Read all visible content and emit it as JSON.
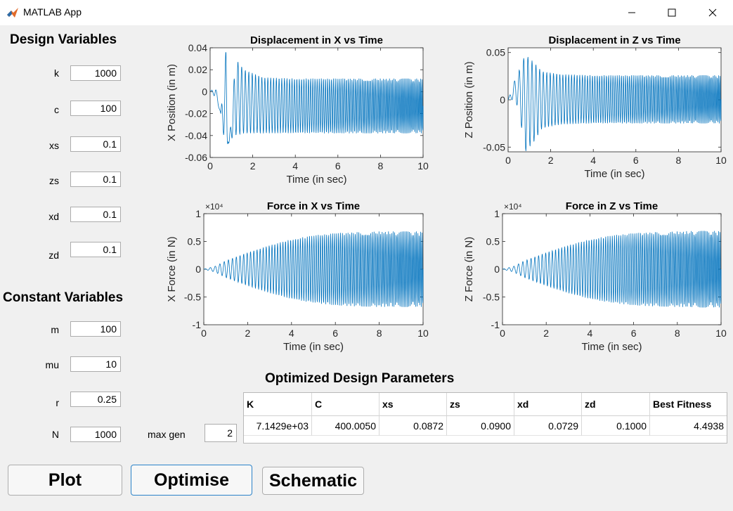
{
  "window": {
    "title": "MATLAB App"
  },
  "design": {
    "title": "Design Variables",
    "fields": [
      {
        "label": "k",
        "value": "1000"
      },
      {
        "label": "c",
        "value": "100"
      },
      {
        "label": "xs",
        "value": "0.1"
      },
      {
        "label": "zs",
        "value": "0.1"
      },
      {
        "label": "xd",
        "value": "0.1"
      },
      {
        "label": "zd",
        "value": "0.1"
      }
    ]
  },
  "constant": {
    "title": "Constant Variables",
    "fields": [
      {
        "label": "m",
        "value": "100"
      },
      {
        "label": "mu",
        "value": "10"
      },
      {
        "label": "r",
        "value": "0.25"
      },
      {
        "label": "N",
        "value": "1000"
      }
    ]
  },
  "maxgen": {
    "label": "max gen",
    "value": "2"
  },
  "table": {
    "title": "Optimized Design Parameters",
    "columns": [
      "K",
      "C",
      "xs",
      "zs",
      "xd",
      "zd",
      "Best Fitness"
    ],
    "rows": [
      [
        "7.1429e+03",
        "400.0050",
        "0.0872",
        "0.0900",
        "0.0729",
        "0.1000",
        "4.4938"
      ]
    ]
  },
  "buttons": {
    "plot": "Plot",
    "optimise": "Optimise",
    "schematic": "Schematic"
  },
  "colors": {
    "line": "#0072bd",
    "focus": "#2b83c9"
  },
  "chart_data": [
    {
      "type": "line",
      "title": "Displacement in X vs Time",
      "xlabel": "Time (in sec)",
      "ylabel": "X Position (in m)",
      "xlim": [
        0,
        10
      ],
      "ylim": [
        -0.06,
        0.04
      ],
      "xticks": [
        "0",
        "2",
        "4",
        "6",
        "8",
        "10"
      ],
      "yticks": [
        "-0.06",
        "-0.04",
        "-0.02",
        "0",
        "0.02",
        "0.04"
      ],
      "exponent": "",
      "series": [
        {
          "x": [
            0,
            0.25,
            0.5,
            0.75,
            0.85,
            1.2,
            1.6,
            2.5,
            4,
            10
          ],
          "y": [
            0,
            0.005,
            -0.02,
            0.04,
            -0.057,
            0.03,
            0.02,
            0.013,
            0.012,
            0.012
          ],
          "y_lower": [
            0,
            -0.005,
            -0.02,
            -0.057,
            -0.045,
            -0.04,
            -0.038,
            -0.038,
            -0.038,
            -0.038
          ]
        }
      ]
    },
    {
      "type": "line",
      "title": "Displacement in Z vs Time",
      "xlabel": "Time (in sec)",
      "ylabel": "Z Position (in m)",
      "xlim": [
        0,
        10
      ],
      "ylim": [
        -0.055,
        0.055
      ],
      "xticks": [
        "0",
        "2",
        "4",
        "6",
        "8",
        "10"
      ],
      "yticks": [
        "-0.05",
        "0",
        "0.05"
      ],
      "exponent": "",
      "series": [
        {
          "x": [
            0,
            0.3,
            0.5,
            0.8,
            1.2,
            1.6,
            2.5,
            4,
            10
          ],
          "y": [
            0,
            0.02,
            0.03,
            0.048,
            0.04,
            0.03,
            0.027,
            0.026,
            0.026
          ],
          "y_lower": [
            0,
            0.0,
            -0.01,
            -0.055,
            -0.045,
            -0.03,
            -0.026,
            -0.025,
            -0.025
          ]
        }
      ]
    },
    {
      "type": "line",
      "title": "Force in X vs Time",
      "xlabel": "Time (in sec)",
      "ylabel": "X Force (in N)",
      "xlim": [
        0,
        10
      ],
      "ylim": [
        -1,
        1
      ],
      "xticks": [
        "0",
        "2",
        "4",
        "6",
        "8",
        "10"
      ],
      "yticks": [
        "-1",
        "-0.5",
        "0",
        "0.5",
        "1"
      ],
      "exponent": "×10⁴",
      "series": [
        {
          "x": [
            0,
            0.5,
            1,
            2,
            3,
            4,
            5,
            6,
            7,
            8,
            9,
            10
          ],
          "y": [
            0,
            0.05,
            0.15,
            0.3,
            0.43,
            0.54,
            0.61,
            0.65,
            0.67,
            0.68,
            0.68,
            0.68
          ],
          "y_lower": [
            0,
            -0.05,
            -0.15,
            -0.3,
            -0.43,
            -0.54,
            -0.61,
            -0.65,
            -0.67,
            -0.68,
            -0.68,
            -0.68
          ]
        }
      ]
    },
    {
      "type": "line",
      "title": "Force in Z vs Time",
      "xlabel": "Time (in sec)",
      "ylabel": "Z Force (in N)",
      "xlim": [
        0,
        10
      ],
      "ylim": [
        -1,
        1
      ],
      "xticks": [
        "0",
        "2",
        "4",
        "6",
        "8",
        "10"
      ],
      "yticks": [
        "-1",
        "-0.5",
        "0",
        "0.5",
        "1"
      ],
      "exponent": "×10⁴",
      "series": [
        {
          "x": [
            0,
            0.5,
            1,
            2,
            3,
            4,
            5,
            6,
            7,
            8,
            9,
            10
          ],
          "y": [
            0,
            0.05,
            0.15,
            0.3,
            0.43,
            0.54,
            0.61,
            0.65,
            0.67,
            0.68,
            0.69,
            0.69
          ],
          "y_lower": [
            0,
            -0.05,
            -0.15,
            -0.3,
            -0.43,
            -0.54,
            -0.61,
            -0.65,
            -0.67,
            -0.68,
            -0.69,
            -0.69
          ]
        }
      ]
    }
  ]
}
